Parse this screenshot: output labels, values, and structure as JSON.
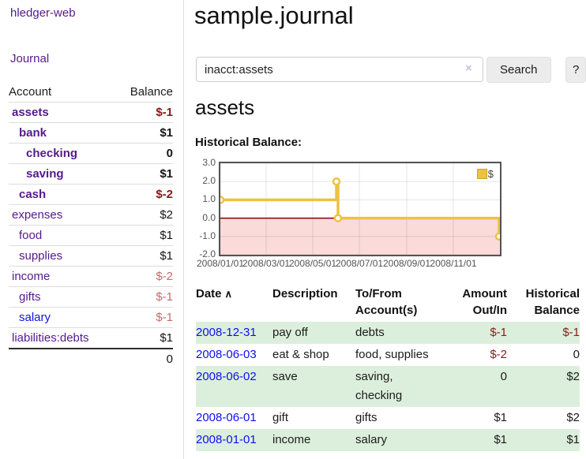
{
  "colors": {
    "accent_purple": "#551a8b",
    "link_blue": "#0f10ee",
    "negative_strong": "#8b1515",
    "negative_soft": "#c56c6c",
    "row_shade_green": "#dcefdc",
    "series_gold": "#edc240",
    "negative_region_pink": "#fbdada",
    "zero_line_red": "#8b0000"
  },
  "sidebar": {
    "brand": "hledger-web",
    "journal_link": "Journal",
    "accounts": {
      "headers": [
        "Account",
        "Balance"
      ],
      "rows": [
        {
          "name": "assets",
          "depth": 0,
          "bold": true,
          "color": "purple",
          "balance": "$-1",
          "balance_style": "neg-strong"
        },
        {
          "name": "bank",
          "depth": 1,
          "bold": true,
          "color": "purple",
          "balance": "$1",
          "balance_style": "pos"
        },
        {
          "name": "checking",
          "depth": 2,
          "bold": true,
          "color": "purple",
          "balance": "0",
          "balance_style": "pos"
        },
        {
          "name": "saving",
          "depth": 2,
          "bold": true,
          "color": "purple",
          "balance": "$1",
          "balance_style": "pos"
        },
        {
          "name": "cash",
          "depth": 1,
          "bold": true,
          "color": "purple",
          "balance": "$-2",
          "balance_style": "neg-strong"
        },
        {
          "name": "expenses",
          "depth": 0,
          "bold": false,
          "color": "purple",
          "balance": "$2",
          "balance_style": "pos"
        },
        {
          "name": "food",
          "depth": 1,
          "bold": false,
          "color": "purple",
          "balance": "$1",
          "balance_style": "pos"
        },
        {
          "name": "supplies",
          "depth": 1,
          "bold": false,
          "color": "purple",
          "balance": "$1",
          "balance_style": "pos"
        },
        {
          "name": "income",
          "depth": 0,
          "bold": false,
          "color": "purple",
          "balance": "$-2",
          "balance_style": "neg-soft"
        },
        {
          "name": "gifts",
          "depth": 1,
          "bold": false,
          "color": "purple",
          "balance": "$-1",
          "balance_style": "neg-soft"
        },
        {
          "name": "salary",
          "depth": 1,
          "bold": false,
          "color": "blue",
          "balance": "$-1",
          "balance_style": "neg-soft"
        },
        {
          "name": "liabilities:debts",
          "depth": 0,
          "bold": false,
          "color": "purple",
          "balance": "$1",
          "balance_style": "pos"
        }
      ],
      "total": "0"
    }
  },
  "main": {
    "title": "sample.journal",
    "search": {
      "value": "inacct:assets",
      "clear_icon": "×",
      "button_label": "Search",
      "help_label": "?"
    },
    "account_heading": "assets",
    "chart_label": "Historical Balance:"
  },
  "chart_data": {
    "type": "line",
    "step": true,
    "title": "Historical Balance:",
    "series": [
      {
        "name": "$",
        "color": "#edc240",
        "points": [
          [
            "2008-01-01",
            1.0
          ],
          [
            "2008-06-01",
            2.0
          ],
          [
            "2008-06-03",
            0.0
          ],
          [
            "2008-12-31",
            -1.0
          ]
        ]
      }
    ],
    "x_range": [
      "2008-01-01",
      "2009-01-01"
    ],
    "x_ticks": [
      "2008/01/01",
      "2008/03/01",
      "2008/05/01",
      "2008/07/01",
      "2008/09/01",
      "2008/11/01"
    ],
    "y_ticks": [
      "3.0",
      "2.0",
      "1.0",
      "0.0",
      "-1.0",
      "-2.0"
    ],
    "ylim": [
      -2,
      3
    ],
    "grid": true,
    "negative_region_color": "#fbdada",
    "zero_line_color": "#8b0000",
    "legend": {
      "label": "$",
      "position": "top-right"
    }
  },
  "register": {
    "columns": [
      {
        "lines": [
          "Date"
        ],
        "sort_icon": "∧",
        "align": "left"
      },
      {
        "lines": [
          "Description"
        ],
        "align": "left"
      },
      {
        "lines": [
          "To/From",
          "Account(s)"
        ],
        "align": "left"
      },
      {
        "lines": [
          "Amount",
          "Out/In"
        ],
        "align": "right"
      },
      {
        "lines": [
          "Historical",
          "Balance"
        ],
        "align": "right"
      }
    ],
    "rows": [
      {
        "date": "2008-12-31",
        "description": "pay off",
        "accounts": [
          "debts"
        ],
        "amount": "$-1",
        "amount_neg": true,
        "balance": "$-1",
        "balance_neg": true,
        "shaded": true
      },
      {
        "date": "2008-06-03",
        "description": "eat & shop",
        "accounts": [
          "food, supplies"
        ],
        "amount": "$-2",
        "amount_neg": true,
        "balance": "0",
        "balance_neg": false,
        "shaded": false
      },
      {
        "date": "2008-06-02",
        "description": "save",
        "accounts": [
          "saving,",
          "checking"
        ],
        "amount": "0",
        "amount_neg": false,
        "balance": "$2",
        "balance_neg": false,
        "shaded": true
      },
      {
        "date": "2008-06-01",
        "description": "gift",
        "accounts": [
          "gifts"
        ],
        "amount": "$1",
        "amount_neg": false,
        "balance": "$2",
        "balance_neg": false,
        "shaded": false
      },
      {
        "date": "2008-01-01",
        "description": "income",
        "accounts": [
          "salary"
        ],
        "amount": "$1",
        "amount_neg": false,
        "balance": "$1",
        "balance_neg": false,
        "shaded": true
      }
    ]
  }
}
